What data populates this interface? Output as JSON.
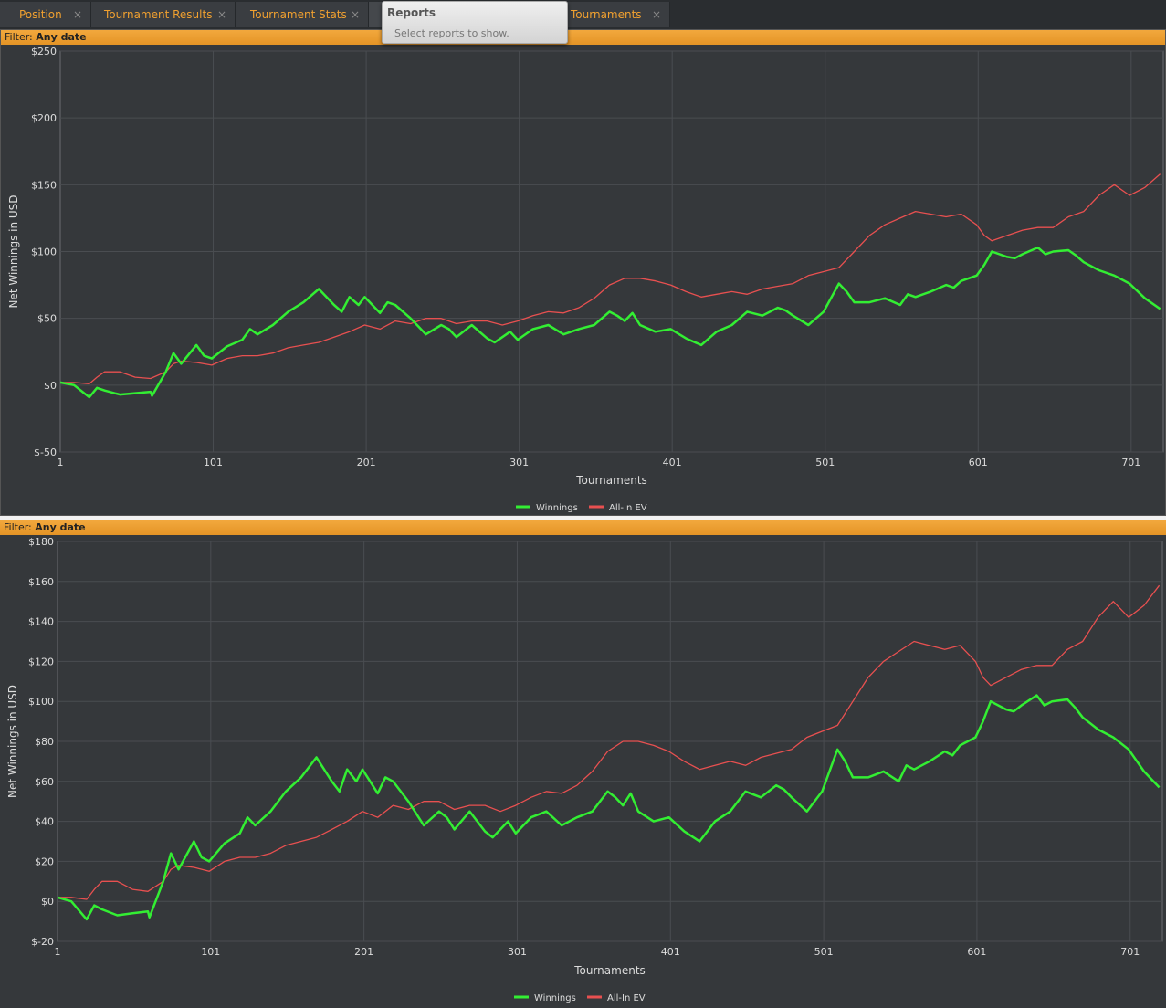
{
  "tabs": [
    {
      "label": "Position"
    },
    {
      "label": "Tournament Results"
    },
    {
      "label": "Tournament Stats"
    },
    {
      "label": ""
    },
    {
      "label": "Tournaments"
    }
  ],
  "tab_close_glyph": "×",
  "tooltip": {
    "title": "Reports",
    "subtitle": "Select reports to show."
  },
  "filter": {
    "label": "Filter:",
    "value": "Any date"
  },
  "colors": {
    "accent": "#f0a030",
    "winnings": "#33ee33",
    "allin_ev": "#e85050"
  },
  "chart_data": [
    {
      "type": "line",
      "title": "",
      "xlabel": "Tournaments",
      "ylabel": "Net Winnings in USD",
      "xlim": [
        1,
        722
      ],
      "ylim": [
        -50,
        250
      ],
      "xticks": [
        1,
        101,
        201,
        301,
        401,
        501,
        601,
        701
      ],
      "yticks": [
        -50,
        0,
        50,
        100,
        150,
        200,
        250
      ],
      "ytick_labels": [
        "$-50",
        "$0",
        "$50",
        "$100",
        "$150",
        "$200",
        "$250"
      ],
      "grid": true,
      "legend": "bottom",
      "series": [
        {
          "name": "Winnings",
          "color": "#33ee33",
          "x": [
            1,
            10,
            20,
            25,
            30,
            40,
            50,
            60,
            61,
            70,
            75,
            80,
            90,
            95,
            100,
            110,
            120,
            125,
            130,
            140,
            150,
            160,
            170,
            180,
            185,
            190,
            196,
            200,
            210,
            215,
            220,
            230,
            235,
            240,
            250,
            255,
            260,
            270,
            280,
            285,
            290,
            295,
            300,
            310,
            320,
            330,
            340,
            350,
            360,
            365,
            370,
            375,
            380,
            390,
            400,
            410,
            420,
            425,
            430,
            440,
            450,
            460,
            470,
            475,
            480,
            490,
            500,
            510,
            515,
            520,
            530,
            540,
            550,
            555,
            560,
            570,
            580,
            585,
            590,
            600,
            605,
            610,
            620,
            625,
            630,
            640,
            645,
            650,
            660,
            665,
            670,
            680,
            690,
            700,
            710,
            720
          ],
          "y": [
            2,
            0,
            -9,
            -2,
            -4,
            -7,
            -6,
            -5,
            -8,
            10,
            24,
            16,
            30,
            22,
            20,
            29,
            34,
            42,
            38,
            45,
            55,
            62,
            72,
            60,
            55,
            66,
            60,
            66,
            54,
            62,
            60,
            50,
            44,
            38,
            45,
            42,
            36,
            45,
            35,
            32,
            36,
            40,
            34,
            42,
            45,
            38,
            42,
            45,
            55,
            52,
            48,
            54,
            45,
            40,
            42,
            35,
            30,
            35,
            40,
            45,
            55,
            52,
            58,
            56,
            52,
            45,
            55,
            76,
            70,
            62,
            62,
            65,
            60,
            68,
            66,
            70,
            75,
            73,
            78,
            82,
            90,
            100,
            96,
            95,
            98,
            103,
            98,
            100,
            101,
            97,
            92,
            86,
            82,
            76,
            65,
            57
          ]
        },
        {
          "name": "All-In EV",
          "color": "#e85050",
          "x": [
            1,
            10,
            20,
            25,
            30,
            40,
            50,
            60,
            70,
            75,
            80,
            90,
            100,
            110,
            120,
            130,
            140,
            150,
            160,
            170,
            180,
            190,
            200,
            210,
            220,
            230,
            240,
            250,
            260,
            270,
            280,
            290,
            300,
            310,
            320,
            330,
            340,
            350,
            360,
            370,
            380,
            390,
            400,
            410,
            420,
            430,
            440,
            450,
            460,
            470,
            480,
            490,
            500,
            510,
            520,
            530,
            540,
            550,
            560,
            570,
            580,
            590,
            600,
            605,
            610,
            620,
            630,
            640,
            650,
            660,
            670,
            680,
            690,
            700,
            710,
            720
          ],
          "y": [
            2,
            2,
            1,
            6,
            10,
            10,
            6,
            5,
            10,
            16,
            18,
            17,
            15,
            20,
            22,
            22,
            24,
            28,
            30,
            32,
            36,
            40,
            45,
            42,
            48,
            46,
            50,
            50,
            46,
            48,
            48,
            45,
            48,
            52,
            55,
            54,
            58,
            65,
            75,
            80,
            80,
            78,
            75,
            70,
            66,
            68,
            70,
            68,
            72,
            74,
            76,
            82,
            85,
            88,
            100,
            112,
            120,
            125,
            130,
            128,
            126,
            128,
            120,
            112,
            108,
            112,
            116,
            118,
            118,
            126,
            130,
            142,
            150,
            142,
            148,
            158
          ]
        }
      ]
    },
    {
      "type": "line",
      "title": "",
      "xlabel": "Tournaments",
      "ylabel": "Net Winnings in USD",
      "xlim": [
        1,
        722
      ],
      "ylim": [
        -20,
        180
      ],
      "xticks": [
        1,
        101,
        201,
        301,
        401,
        501,
        601,
        701
      ],
      "yticks": [
        -20,
        0,
        20,
        40,
        60,
        80,
        100,
        120,
        140,
        160,
        180
      ],
      "ytick_labels": [
        "$-20",
        "$0",
        "$20",
        "$40",
        "$60",
        "$80",
        "$100",
        "$120",
        "$140",
        "$160",
        "$180"
      ],
      "grid": true,
      "legend": "bottom",
      "series": [
        {
          "name": "Winnings",
          "color": "#33ee33",
          "x": [
            1,
            10,
            20,
            25,
            30,
            40,
            50,
            60,
            61,
            70,
            75,
            80,
            90,
            95,
            100,
            110,
            120,
            125,
            130,
            140,
            150,
            160,
            170,
            180,
            185,
            190,
            196,
            200,
            210,
            215,
            220,
            230,
            235,
            240,
            250,
            255,
            260,
            270,
            280,
            285,
            290,
            295,
            300,
            310,
            320,
            330,
            340,
            350,
            360,
            365,
            370,
            375,
            380,
            390,
            400,
            410,
            420,
            425,
            430,
            440,
            450,
            460,
            470,
            475,
            480,
            490,
            500,
            510,
            515,
            520,
            530,
            540,
            550,
            555,
            560,
            570,
            580,
            585,
            590,
            600,
            605,
            610,
            620,
            625,
            630,
            640,
            645,
            650,
            660,
            665,
            670,
            680,
            690,
            700,
            710,
            720
          ],
          "y": [
            2,
            0,
            -9,
            -2,
            -4,
            -7,
            -6,
            -5,
            -8,
            10,
            24,
            16,
            30,
            22,
            20,
            29,
            34,
            42,
            38,
            45,
            55,
            62,
            72,
            60,
            55,
            66,
            60,
            66,
            54,
            62,
            60,
            50,
            44,
            38,
            45,
            42,
            36,
            45,
            35,
            32,
            36,
            40,
            34,
            42,
            45,
            38,
            42,
            45,
            55,
            52,
            48,
            54,
            45,
            40,
            42,
            35,
            30,
            35,
            40,
            45,
            55,
            52,
            58,
            56,
            52,
            45,
            55,
            76,
            70,
            62,
            62,
            65,
            60,
            68,
            66,
            70,
            75,
            73,
            78,
            82,
            90,
            100,
            96,
            95,
            98,
            103,
            98,
            100,
            101,
            97,
            92,
            86,
            82,
            76,
            65,
            57
          ]
        },
        {
          "name": "All-In EV",
          "color": "#e85050",
          "x": [
            1,
            10,
            20,
            25,
            30,
            40,
            50,
            60,
            70,
            75,
            80,
            90,
            100,
            110,
            120,
            130,
            140,
            150,
            160,
            170,
            180,
            190,
            200,
            210,
            220,
            230,
            240,
            250,
            260,
            270,
            280,
            290,
            300,
            310,
            320,
            330,
            340,
            350,
            360,
            370,
            380,
            390,
            400,
            410,
            420,
            430,
            440,
            450,
            460,
            470,
            480,
            490,
            500,
            510,
            520,
            530,
            540,
            550,
            560,
            570,
            580,
            590,
            600,
            605,
            610,
            620,
            630,
            640,
            650,
            660,
            670,
            680,
            690,
            700,
            710,
            720
          ],
          "y": [
            2,
            2,
            1,
            6,
            10,
            10,
            6,
            5,
            10,
            16,
            18,
            17,
            15,
            20,
            22,
            22,
            24,
            28,
            30,
            32,
            36,
            40,
            45,
            42,
            48,
            46,
            50,
            50,
            46,
            48,
            48,
            45,
            48,
            52,
            55,
            54,
            58,
            65,
            75,
            80,
            80,
            78,
            75,
            70,
            66,
            68,
            70,
            68,
            72,
            74,
            76,
            82,
            85,
            88,
            100,
            112,
            120,
            125,
            130,
            128,
            126,
            128,
            120,
            112,
            108,
            112,
            116,
            118,
            118,
            126,
            130,
            142,
            150,
            142,
            148,
            158
          ]
        }
      ]
    }
  ]
}
